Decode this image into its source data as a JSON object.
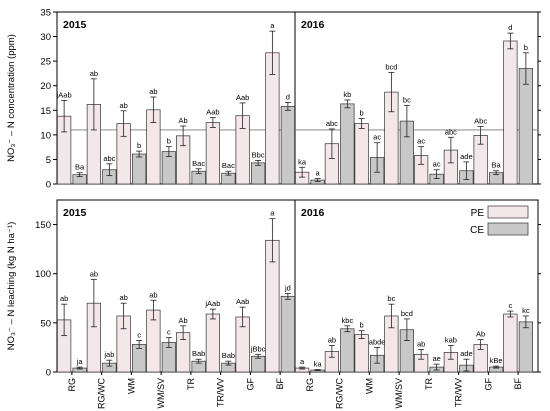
{
  "chart_data": {
    "type": "bar",
    "categories": [
      "RG",
      "RG/WC",
      "WM",
      "WM/SV",
      "TR",
      "TR/WV",
      "GF",
      "BF"
    ],
    "legend": {
      "placement": "top-right of bottom-right panel",
      "entries": [
        {
          "name": "PE",
          "color": "#f3e7ea"
        },
        {
          "name": "CE",
          "color": "#c8c8c8"
        }
      ]
    },
    "top": {
      "ylabel": "NO₃⁻ – N concentration (ppm)",
      "ylim": [
        0,
        35
      ],
      "yticks": [
        0,
        5,
        10,
        15,
        20,
        25,
        30,
        35
      ],
      "reference_line": 11,
      "panels": [
        {
          "year": "2015",
          "series": [
            {
              "name": "PE",
              "values": [
                13.8,
                16.2,
                12.3,
                15.1,
                9.8,
                12.5,
                13.9,
                26.7
              ],
              "errors": [
                3.2,
                5.2,
                2.6,
                2.6,
                2.0,
                1.0,
                2.6,
                4.4
              ],
              "labels": [
                "jAab",
                "ab",
                "ab",
                "ab",
                "Ab",
                "Aab",
                "Aab",
                "a"
              ]
            },
            {
              "name": "CE",
              "values": [
                1.9,
                2.9,
                6.1,
                6.6,
                2.6,
                2.2,
                4.3,
                15.8
              ],
              "errors": [
                0.4,
                1.2,
                0.6,
                1.0,
                0.5,
                0.4,
                0.5,
                0.8
              ],
              "labels": [
                "Ba",
                "abc",
                "b",
                "b",
                "Bac",
                "Bac",
                "Bbc",
                "d"
              ]
            }
          ]
        },
        {
          "year": "2016",
          "series": [
            {
              "name": "PE",
              "values": [
                2.4,
                8.2,
                12.3,
                18.7,
                5.8,
                6.9,
                9.9,
                29.1
              ],
              "errors": [
                1.0,
                3.0,
                1.0,
                4.0,
                1.8,
                2.6,
                1.8,
                1.6
              ],
              "labels": [
                "ka",
                "abc",
                "b",
                "bcd",
                "ac",
                "abc",
                "Abc",
                "d"
              ]
            },
            {
              "name": "CE",
              "values": [
                0.8,
                16.3,
                5.4,
                12.8,
                2.0,
                2.7,
                2.3,
                23.5
              ],
              "errors": [
                0.3,
                0.8,
                3.0,
                3.2,
                0.9,
                1.8,
                0.4,
                3.2
              ],
              "labels": [
                "a",
                "kb",
                "ac",
                "bc",
                "ac",
                "ade",
                "Ba",
                "b"
              ]
            }
          ]
        }
      ]
    },
    "bottom": {
      "ylabel": "NO₃⁻ – N leaching (kg N ha⁻¹)",
      "ylim": [
        0,
        175
      ],
      "yticks": [
        0,
        50,
        100,
        150
      ],
      "panels": [
        {
          "year": "2015",
          "series": [
            {
              "name": "PE",
              "values": [
                53,
                70,
                57,
                63,
                40,
                59,
                56,
                134
              ],
              "errors": [
                16,
                24,
                13,
                10,
                7,
                5,
                10,
                22
              ],
              "labels": [
                "ab",
                "ab",
                "ab",
                "ab",
                "Ab",
                "jAab",
                "Aab",
                "a"
              ]
            },
            {
              "name": "CE",
              "values": [
                4,
                9,
                28,
                30,
                11,
                9,
                16,
                77
              ],
              "errors": [
                1,
                3,
                4,
                5,
                2,
                2,
                2,
                3
              ],
              "labels": [
                "ja",
                "jab",
                "c",
                "c",
                "Bab",
                "Bab",
                "jBbc",
                "jd"
              ]
            }
          ]
        },
        {
          "year": "2016",
          "series": [
            {
              "name": "PE",
              "values": [
                4,
                21,
                38,
                57,
                18,
                20,
                28,
                59
              ],
              "errors": [
                1,
                6,
                4,
                12,
                5,
                7,
                5,
                3
              ],
              "labels": [
                "a",
                "ab",
                "b",
                "bc",
                "ab",
                "kab",
                "Ab",
                "c"
              ]
            },
            {
              "name": "CE",
              "values": [
                2,
                44,
                17,
                43,
                5,
                7,
                5,
                51
              ],
              "errors": [
                0.5,
                3,
                8,
                11,
                3,
                6,
                1,
                6
              ],
              "labels": [
                "ka",
                "kbc",
                "abde",
                "bcd",
                "ae",
                "ade",
                "kBe",
                "kc"
              ]
            }
          ]
        }
      ]
    }
  }
}
